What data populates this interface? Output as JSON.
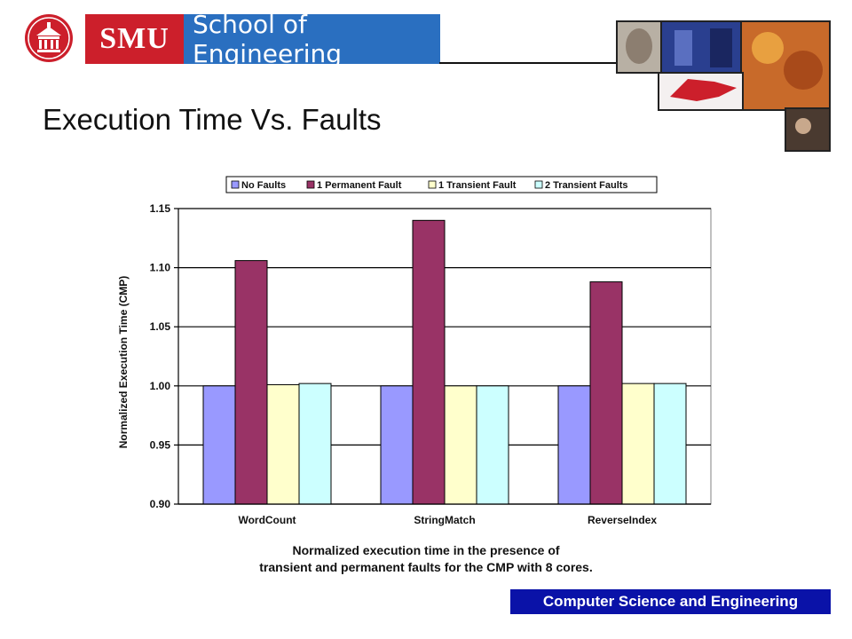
{
  "header": {
    "banner_smu": "SMU",
    "banner_school": "School of Engineering"
  },
  "slide": {
    "title": "Execution Time Vs. Faults",
    "caption_line1": "Normalized execution time in the presence of",
    "caption_line2": "transient and permanent faults for the CMP with 8 cores."
  },
  "footer": {
    "label": "Computer Science and Engineering"
  },
  "colors": {
    "no_faults": "#9999ff",
    "permanent": "#993366",
    "transient1": "#ffffcc",
    "transient2": "#ccffff",
    "banner_red": "#cc1f2b",
    "banner_blue": "#2a6fc0",
    "footer_blue": "#0a12a8"
  },
  "chart_data": {
    "type": "bar",
    "categories": [
      "WordCount",
      "StringMatch",
      "ReverseIndex"
    ],
    "series": [
      {
        "name": "No Faults",
        "values": [
          1.0,
          1.0,
          1.0
        ]
      },
      {
        "name": "1 Permanent Fault",
        "values": [
          1.106,
          1.14,
          1.088
        ]
      },
      {
        "name": "1 Transient Fault",
        "values": [
          1.001,
          1.0,
          1.002
        ]
      },
      {
        "name": "2 Transient Faults",
        "values": [
          1.002,
          1.0,
          1.002
        ]
      }
    ],
    "ylabel": "Normalized Execution Time (CMP)",
    "xlabel": "",
    "ylim": [
      0.9,
      1.15
    ],
    "yticks": [
      "0.90",
      "0.95",
      "1.00",
      "1.05",
      "1.10",
      "1.15"
    ],
    "grid": true,
    "legend_position": "top"
  }
}
